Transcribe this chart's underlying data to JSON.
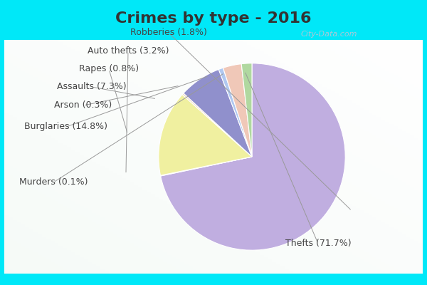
{
  "title": "Crimes by type - 2016",
  "slices": [
    {
      "label": "Thefts",
      "pct": 71.7,
      "color": "#c0aee0"
    },
    {
      "label": "Murders",
      "pct": 0.1,
      "color": "#d8ecd8"
    },
    {
      "label": "Burglaries",
      "pct": 14.8,
      "color": "#f0f0a0"
    },
    {
      "label": "Arson",
      "pct": 0.3,
      "color": "#f0d8c0"
    },
    {
      "label": "Assaults",
      "pct": 7.3,
      "color": "#9090cc"
    },
    {
      "label": "Rapes",
      "pct": 0.8,
      "color": "#b0c8f0"
    },
    {
      "label": "Auto thefts",
      "pct": 3.2,
      "color": "#f0c8b8"
    },
    {
      "label": "Robberies",
      "pct": 1.8,
      "color": "#b0d8a0"
    }
  ],
  "title_fontsize": 16,
  "label_fontsize": 9,
  "bg_cyan": "#00e8f8",
  "bg_main_top": "#e8f4ee",
  "bg_main_bot": "#f0f8f4",
  "label_color": "#444444",
  "line_color": "#999999",
  "watermark": "City-Data.com",
  "watermark_color": "#aac8d8"
}
